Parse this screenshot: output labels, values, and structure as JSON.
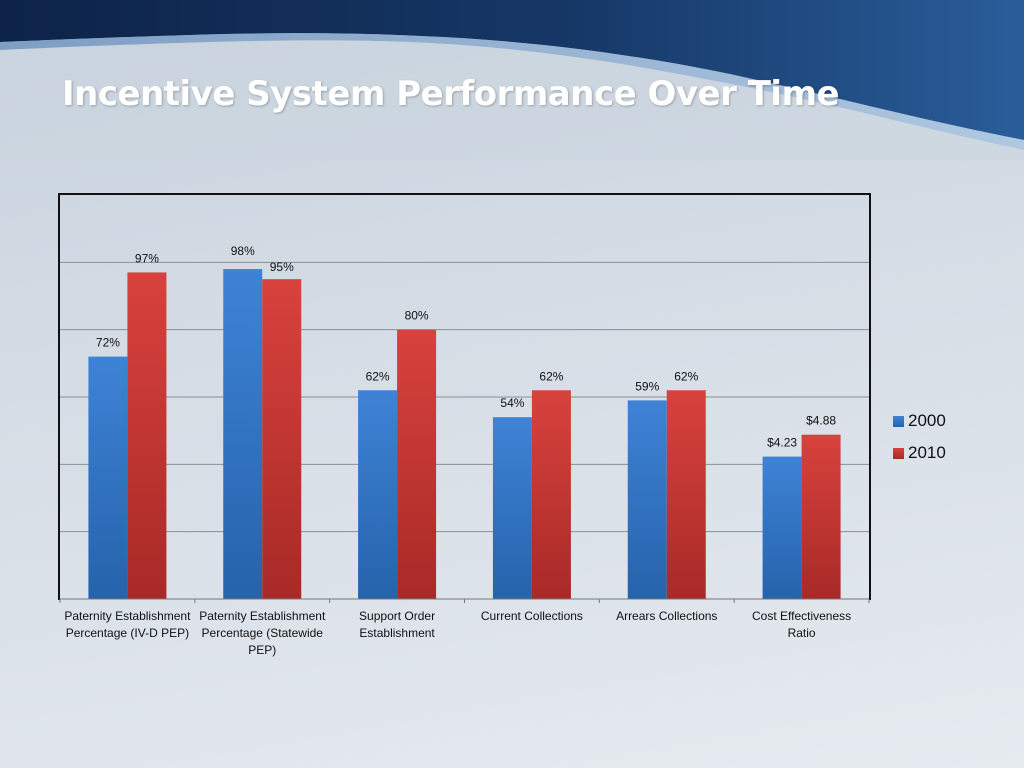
{
  "slide": {
    "title": "Incentive System Performance Over Time"
  },
  "chart_data": {
    "type": "bar",
    "categories": [
      "Paternity Establishment Percentage (IV-D PEP)",
      "Paternity Establishment Percentage (Statewide PEP)",
      "Support Order Establishment",
      "Current Collections",
      "Arrears Collections",
      "Cost Effectiveness Ratio"
    ],
    "series": [
      {
        "name": "2000",
        "color": "#3a7ccc",
        "values": [
          72,
          98,
          62,
          54,
          59,
          null
        ],
        "labels": [
          "72%",
          "98%",
          "62%",
          "54%",
          "59%",
          "$4.23"
        ]
      },
      {
        "name": "2010",
        "color": "#cc3a38",
        "values": [
          97,
          95,
          80,
          62,
          62,
          null
        ],
        "labels": [
          "97%",
          "95%",
          "80%",
          "62%",
          "62%",
          "$4.88"
        ]
      }
    ],
    "cost_effectiveness_values": {
      "2000": 4.23,
      "2010": 4.88
    },
    "ylim": [
      0,
      120
    ],
    "grid": true,
    "legend_position": "right"
  }
}
